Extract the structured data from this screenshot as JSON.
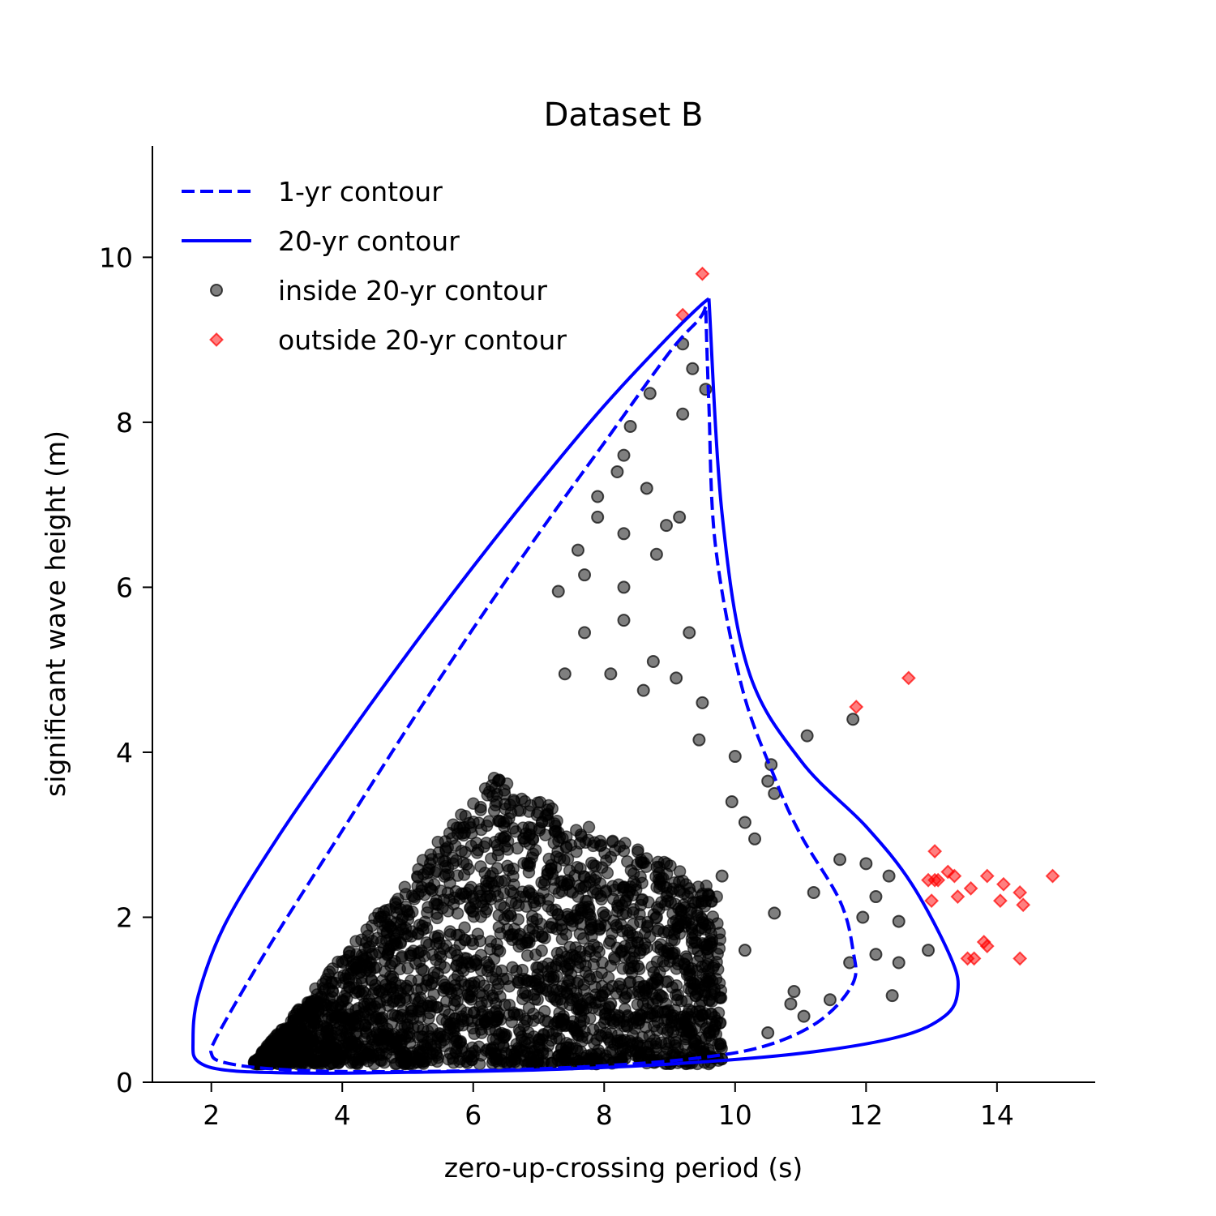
{
  "chart_data": {
    "type": "scatter",
    "title": "Dataset B",
    "xlabel": "zero-up-crossing period (s)",
    "ylabel": "significant wave height (m)",
    "xlim": [
      1.1,
      15.5
    ],
    "ylim": [
      0,
      11.35
    ],
    "xticks": [
      2,
      4,
      6,
      8,
      10,
      12,
      14
    ],
    "yticks": [
      0,
      2,
      4,
      6,
      8,
      10
    ],
    "xtick_labels": [
      "2",
      "4",
      "6",
      "8",
      "10",
      "12",
      "14"
    ],
    "ytick_labels": [
      "0",
      "2",
      "4",
      "6",
      "8",
      "10"
    ],
    "grid": false,
    "legend_position": "top-left",
    "colors": {
      "contour": "#0000ff",
      "inside": "#000000",
      "outside": "#ff0000"
    },
    "series": [
      {
        "name": "1-yr contour",
        "kind": "line",
        "style": "dashed",
        "x": [
          9.55,
          9.45,
          9.0,
          8.0,
          7.0,
          6.0,
          5.0,
          4.0,
          3.0,
          2.4,
          2.05,
          2.0,
          2.15,
          2.8,
          4.0,
          6.0,
          8.0,
          9.5,
          10.5,
          11.3,
          11.8,
          11.8,
          11.6,
          11.0,
          10.6,
          10.1,
          9.7,
          9.6,
          9.55
        ],
        "y": [
          9.4,
          9.25,
          8.85,
          7.75,
          6.65,
          5.5,
          4.3,
          3.05,
          1.8,
          1.0,
          0.5,
          0.35,
          0.25,
          0.17,
          0.13,
          0.14,
          0.2,
          0.3,
          0.45,
          0.75,
          1.2,
          1.6,
          2.2,
          3.0,
          3.7,
          4.8,
          6.5,
          8.2,
          9.4
        ]
      },
      {
        "name": "20-yr contour",
        "kind": "line",
        "style": "solid",
        "x": [
          9.6,
          9.45,
          9.0,
          8.0,
          7.0,
          6.0,
          5.0,
          4.0,
          3.0,
          2.2,
          1.8,
          1.72,
          1.8,
          2.3,
          3.5,
          5.0,
          7.0,
          9.0,
          11.0,
          12.5,
          13.2,
          13.4,
          13.3,
          12.7,
          12.0,
          11.0,
          10.2,
          9.8,
          9.6
        ],
        "y": [
          9.5,
          9.4,
          9.05,
          8.2,
          7.25,
          6.25,
          5.2,
          4.1,
          2.95,
          1.9,
          1.05,
          0.5,
          0.25,
          0.14,
          0.11,
          0.12,
          0.15,
          0.22,
          0.35,
          0.55,
          0.8,
          1.1,
          1.5,
          2.4,
          3.1,
          3.9,
          5.0,
          6.9,
          9.5
        ]
      },
      {
        "name": "inside 20-yr contour",
        "kind": "scatter",
        "marker": "circle",
        "points": [
          [
            9.2,
            8.95
          ],
          [
            9.35,
            8.65
          ],
          [
            9.55,
            8.4
          ],
          [
            8.7,
            8.35
          ],
          [
            9.2,
            8.1
          ],
          [
            8.4,
            7.95
          ],
          [
            8.3,
            7.6
          ],
          [
            8.2,
            7.4
          ],
          [
            8.65,
            7.2
          ],
          [
            7.9,
            7.1
          ],
          [
            9.15,
            6.85
          ],
          [
            8.95,
            6.75
          ],
          [
            7.9,
            6.85
          ],
          [
            8.3,
            6.65
          ],
          [
            7.6,
            6.45
          ],
          [
            8.8,
            6.4
          ],
          [
            7.7,
            6.15
          ],
          [
            8.3,
            6.0
          ],
          [
            7.3,
            5.95
          ],
          [
            9.3,
            5.45
          ],
          [
            8.3,
            5.6
          ],
          [
            7.7,
            5.45
          ],
          [
            8.75,
            5.1
          ],
          [
            8.1,
            4.95
          ],
          [
            7.4,
            4.95
          ],
          [
            9.1,
            4.9
          ],
          [
            8.6,
            4.75
          ],
          [
            9.5,
            4.6
          ],
          [
            9.45,
            4.15
          ],
          [
            10.0,
            3.95
          ],
          [
            10.55,
            3.85
          ],
          [
            10.5,
            3.65
          ],
          [
            9.95,
            3.4
          ],
          [
            10.15,
            3.15
          ],
          [
            10.6,
            3.5
          ],
          [
            11.1,
            4.2
          ],
          [
            11.8,
            4.4
          ],
          [
            11.6,
            2.7
          ],
          [
            12.0,
            2.65
          ],
          [
            12.35,
            2.5
          ],
          [
            12.15,
            2.25
          ],
          [
            11.95,
            2.0
          ],
          [
            12.5,
            1.95
          ],
          [
            12.95,
            1.6
          ],
          [
            12.5,
            1.45
          ],
          [
            12.15,
            1.55
          ],
          [
            11.75,
            1.45
          ],
          [
            12.4,
            1.05
          ],
          [
            11.45,
            1.0
          ],
          [
            11.05,
            0.8
          ],
          [
            10.85,
            0.95
          ],
          [
            10.5,
            0.6
          ],
          [
            10.9,
            1.1
          ],
          [
            11.2,
            2.3
          ],
          [
            10.6,
            2.05
          ],
          [
            10.15,
            1.6
          ],
          [
            9.3,
            1.3
          ],
          [
            8.9,
            0.85
          ],
          [
            9.6,
            0.6
          ],
          [
            8.8,
            2.0
          ],
          [
            9.8,
            2.5
          ],
          [
            10.3,
            2.95
          ],
          [
            7.0,
            0.45
          ],
          [
            6.5,
            0.35
          ],
          [
            8.1,
            0.95
          ]
        ]
      },
      {
        "name": "outside 20-yr contour",
        "kind": "scatter",
        "marker": "diamond",
        "points": [
          [
            9.5,
            9.8
          ],
          [
            9.2,
            9.3
          ],
          [
            12.65,
            4.9
          ],
          [
            11.85,
            4.55
          ],
          [
            13.05,
            2.8
          ],
          [
            12.95,
            2.45
          ],
          [
            13.05,
            2.45
          ],
          [
            13.1,
            2.45
          ],
          [
            13.25,
            2.55
          ],
          [
            13.35,
            2.5
          ],
          [
            13.0,
            2.2
          ],
          [
            13.4,
            2.25
          ],
          [
            13.6,
            2.35
          ],
          [
            13.85,
            2.5
          ],
          [
            14.1,
            2.4
          ],
          [
            14.35,
            2.3
          ],
          [
            14.05,
            2.2
          ],
          [
            14.4,
            2.15
          ],
          [
            14.85,
            2.5
          ],
          [
            13.8,
            1.7
          ],
          [
            13.85,
            1.65
          ],
          [
            13.55,
            1.5
          ],
          [
            13.65,
            1.5
          ],
          [
            14.35,
            1.5
          ]
        ]
      }
    ]
  }
}
